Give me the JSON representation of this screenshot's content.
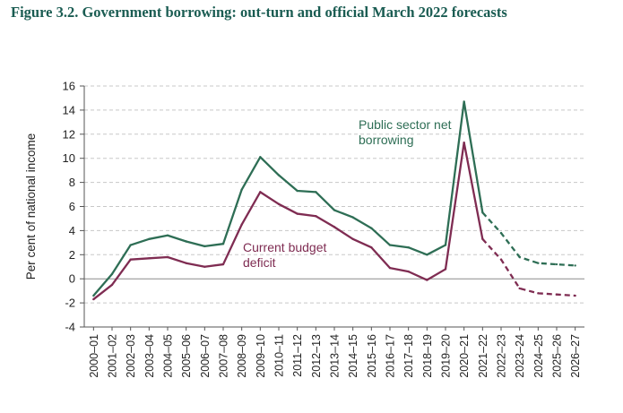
{
  "title": "Figure 3.2. Government borrowing: out-turn and official March 2022 forecasts",
  "chart_data": {
    "type": "line",
    "title": "Figure 3.2. Government borrowing: out-turn and official March 2022 forecasts",
    "xlabel": "",
    "ylabel": "Per cent of national income",
    "ylim": [
      -4,
      16
    ],
    "yticks": [
      "-4",
      "-2",
      "0",
      "2",
      "4",
      "6",
      "8",
      "10",
      "12",
      "14",
      "16"
    ],
    "grid": true,
    "categories": [
      "2000–01",
      "2001–02",
      "2002–03",
      "2003–04",
      "2004–05",
      "2005–06",
      "2006–07",
      "2007–08",
      "2008–09",
      "2009–10",
      "2010–11",
      "2011–12",
      "2012–13",
      "2013–14",
      "2014–15",
      "2015–16",
      "2016–17",
      "2017–18",
      "2018–19",
      "2019–20",
      "2020–21",
      "2021–22",
      "2022–23",
      "2023–24",
      "2024–25",
      "2025–26",
      "2026–27"
    ],
    "forecast_start_index": 21,
    "series": [
      {
        "name": "Public sector net borrowing",
        "label_lines": [
          "Public sector net",
          "borrowing"
        ],
        "color": "#2e6e55",
        "values": [
          -1.4,
          0.4,
          2.8,
          3.3,
          3.6,
          3.1,
          2.7,
          2.9,
          7.4,
          10.1,
          8.6,
          7.3,
          7.2,
          5.7,
          5.1,
          4.2,
          2.8,
          2.6,
          2.0,
          2.8,
          14.7,
          5.5,
          3.8,
          1.8,
          1.3,
          1.2,
          1.1
        ]
      },
      {
        "name": "Current budget deficit",
        "label_lines": [
          "Current budget",
          "deficit"
        ],
        "color": "#7f2c52",
        "values": [
          -1.7,
          -0.5,
          1.6,
          1.7,
          1.8,
          1.3,
          1.0,
          1.2,
          4.5,
          7.2,
          6.2,
          5.4,
          5.2,
          4.3,
          3.3,
          2.6,
          0.9,
          0.6,
          -0.1,
          0.8,
          11.3,
          3.3,
          1.6,
          -0.8,
          -1.2,
          -1.3,
          -1.4
        ]
      }
    ]
  }
}
